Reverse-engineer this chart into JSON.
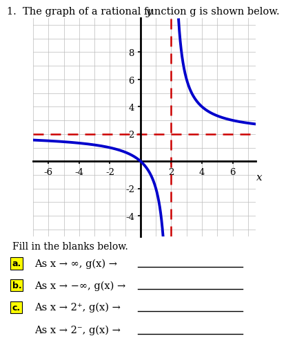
{
  "title": "1.  The graph of a rational function g is shown below.",
  "xlabel": "x",
  "ylabel": "y",
  "xlim": [
    -7,
    7.5
  ],
  "ylim": [
    -5.5,
    10.5
  ],
  "xticks": [
    -6,
    -4,
    -2,
    2,
    4,
    6
  ],
  "yticks": [
    -4,
    -2,
    2,
    4,
    6,
    8
  ],
  "vertical_asymptote": 2,
  "horizontal_asymptote": 2,
  "curve_color": "#0000CC",
  "curve_linewidth": 2.8,
  "asymptote_color": "#CC0000",
  "asymptote_linewidth": 1.8,
  "grid_color": "#BBBBBB",
  "grid_linewidth": 0.5,
  "background_color": "#FFFFFF",
  "fill_text": "Fill in the blanks below.",
  "questions": [
    {
      "label": "a.",
      "text": "As x → ∞, g(x) →",
      "label_color": "#FFFF00",
      "has_label": true
    },
    {
      "label": "b.",
      "text": "As x → −∞, g(x) →",
      "label_color": "#FFFF00",
      "has_label": true
    },
    {
      "label": "c.",
      "text": "As x → 2⁺, g(x) →",
      "label_color": "#FFFF00",
      "has_label": true
    },
    {
      "label": "",
      "text": "As x → 2⁻, g(x) →",
      "label_color": "#000000",
      "has_label": false
    }
  ],
  "func_scale": 4.0
}
